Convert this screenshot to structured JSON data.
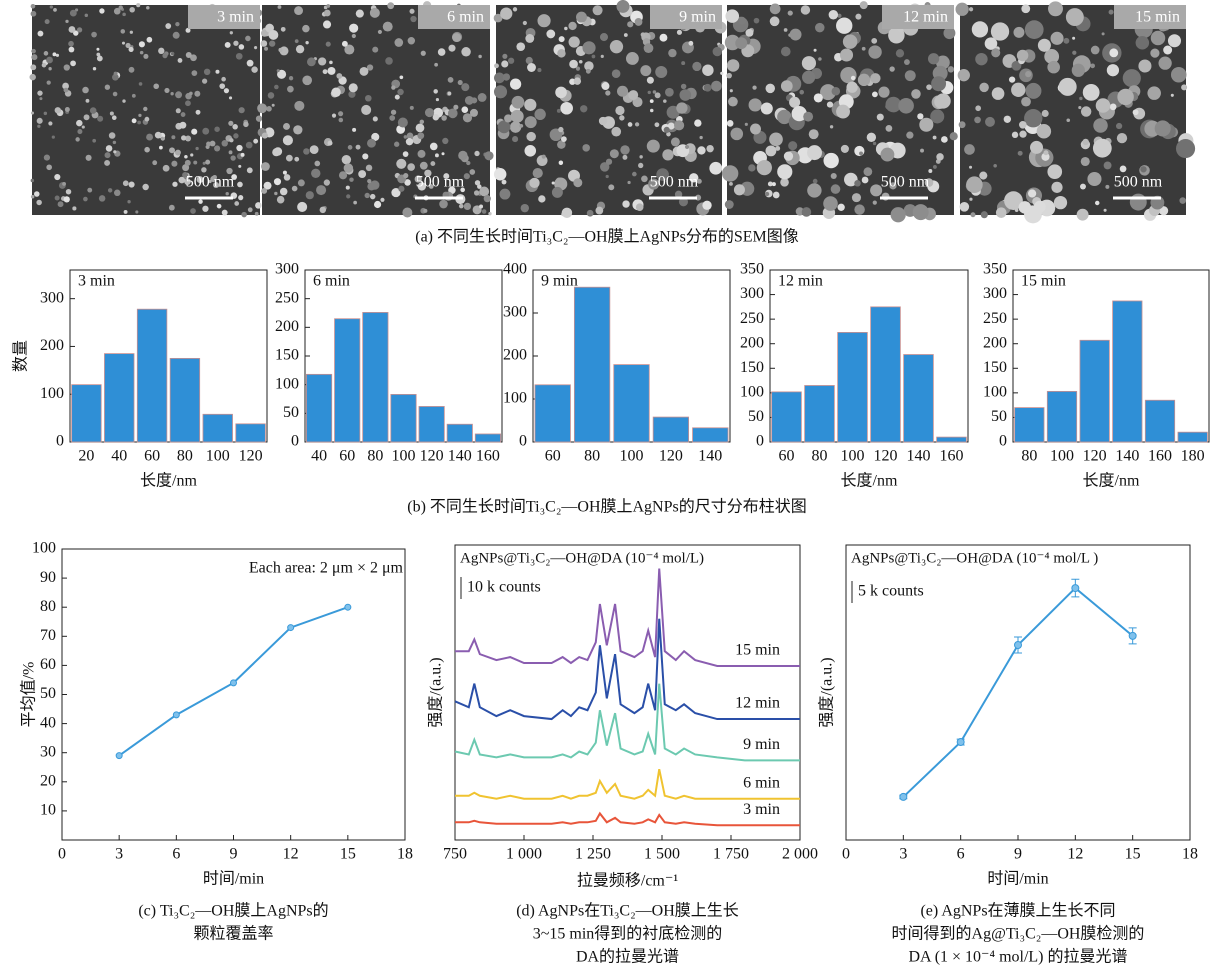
{
  "sem_panels": [
    {
      "time": "3 min",
      "scale": "500 nm"
    },
    {
      "time": "6 min",
      "scale": "500 nm"
    },
    {
      "time": "9 min",
      "scale": "500 nm"
    },
    {
      "time": "12 min",
      "scale": "500 nm"
    },
    {
      "time": "15 min",
      "scale": "500 nm"
    }
  ],
  "captions": {
    "a": "(a) 不同生长时间Ti₃C₂—OH膜上AgNPs分布的SEM图像",
    "b": "(b) 不同生长时间Ti₃C₂—OH膜上AgNPs的尺寸分布柱状图"
  },
  "chart_data": [
    {
      "type": "bar",
      "label": "3 min",
      "y_label": "数量",
      "x_label": "长度/nm",
      "color": "#2f8fd6",
      "x": [
        20,
        40,
        60,
        80,
        100,
        120
      ],
      "values": [
        120,
        185,
        278,
        175,
        58,
        38
      ],
      "xlim": [
        10,
        130
      ],
      "xticks": [
        20,
        40,
        60,
        80,
        100,
        120
      ],
      "ylim": [
        0,
        360
      ],
      "yticks": [
        0,
        100,
        200,
        300
      ]
    },
    {
      "type": "bar",
      "label": "6 min",
      "color": "#2f8fd6",
      "x": [
        40,
        60,
        80,
        100,
        120,
        140,
        160
      ],
      "values": [
        118,
        215,
        226,
        83,
        62,
        31,
        14
      ],
      "xlim": [
        30,
        170
      ],
      "xticks": [
        40,
        60,
        80,
        100,
        120,
        140,
        160
      ],
      "ylim": [
        0,
        300
      ],
      "yticks": [
        0,
        50,
        100,
        150,
        200,
        250,
        300
      ]
    },
    {
      "type": "bar",
      "label": "9 min",
      "color": "#2f8fd6",
      "x": [
        60,
        80,
        100,
        120,
        140
      ],
      "values": [
        133,
        360,
        180,
        58,
        33
      ],
      "xlim": [
        50,
        150
      ],
      "xticks": [
        60,
        80,
        100,
        120,
        140
      ],
      "ylim": [
        0,
        400
      ],
      "yticks": [
        0,
        100,
        200,
        300,
        400
      ]
    },
    {
      "type": "bar",
      "label": "12 min",
      "x_label": "长度/nm",
      "color": "#2f8fd6",
      "x": [
        60,
        80,
        100,
        120,
        140,
        160
      ],
      "values": [
        102,
        115,
        223,
        275,
        178,
        10
      ],
      "xlim": [
        50,
        170
      ],
      "xticks": [
        60,
        80,
        100,
        120,
        140,
        160
      ],
      "ylim": [
        0,
        350
      ],
      "yticks": [
        0,
        50,
        100,
        150,
        200,
        250,
        300,
        350
      ]
    },
    {
      "type": "bar",
      "label": "15 min",
      "x_label": "长度/nm",
      "color": "#2f8fd6",
      "x": [
        80,
        100,
        120,
        140,
        160,
        180
      ],
      "values": [
        70,
        103,
        207,
        287,
        85,
        20
      ],
      "xlim": [
        70,
        190
      ],
      "xticks": [
        80,
        100,
        120,
        140,
        160,
        180
      ],
      "ylim": [
        0,
        350
      ],
      "yticks": [
        0,
        50,
        100,
        150,
        200,
        250,
        300,
        350
      ]
    },
    {
      "type": "line",
      "x_label": "时间/min",
      "y_label": "平均值/%",
      "annotation": "Each area: 2 μm × 2 μm",
      "color": "#3a9ad9",
      "x": [
        3,
        6,
        9,
        12,
        15
      ],
      "values": [
        29,
        43,
        54,
        73,
        80
      ],
      "xlim": [
        0,
        18
      ],
      "xticks": [
        0,
        3,
        6,
        9,
        12,
        15,
        18
      ],
      "ylim": [
        0,
        100
      ],
      "yticks": [
        10,
        20,
        30,
        40,
        50,
        60,
        70,
        80,
        90,
        100
      ],
      "caption": [
        "(c) Ti₃C₂—OH膜上AgNPs的",
        "颗粒覆盖率"
      ]
    },
    {
      "type": "spectra",
      "x_label": "拉曼频移/cm⁻¹",
      "y_label": "强度/(a.u.)",
      "annotation": "AgNPs@Ti₃C₂—OH@DA (10⁻⁴ mol/L)",
      "scale_label": "10 k counts",
      "x": [
        750,
        800,
        820,
        840,
        900,
        950,
        1000,
        1100,
        1140,
        1170,
        1200,
        1230,
        1260,
        1275,
        1300,
        1330,
        1350,
        1400,
        1430,
        1450,
        1475,
        1490,
        1510,
        1550,
        1580,
        1620,
        1700,
        1800,
        1900,
        2000
      ],
      "xlim": [
        750,
        2000
      ],
      "xticks": [
        750,
        {
          "value": 1000,
          "label": "1 000"
        },
        {
          "value": 1250,
          "label": "1 250"
        },
        {
          "value": 1500,
          "label": "1 500"
        },
        {
          "value": 1750,
          "label": "1 750"
        },
        {
          "value": 2000,
          "label": "2 000"
        }
      ],
      "ylim": [
        0,
        100
      ],
      "series": [
        {
          "name": "3 min",
          "color": "#e8553a",
          "values": [
            6,
            6,
            6.5,
            6,
            5.5,
            5.5,
            5.5,
            5.5,
            6,
            5.5,
            6,
            6,
            6.5,
            9,
            6,
            7.5,
            6,
            5.5,
            6,
            7,
            6,
            8.5,
            6,
            5.5,
            6,
            5.5,
            5,
            5,
            5,
            5
          ]
        },
        {
          "name": "6 min",
          "color": "#f0c330",
          "values": [
            15,
            15,
            16,
            15,
            14,
            15,
            14,
            14,
            15,
            14,
            15,
            15,
            16,
            20,
            16,
            19,
            15,
            14,
            15,
            17,
            15,
            24,
            15,
            14,
            15,
            14,
            14,
            14,
            14,
            14
          ]
        },
        {
          "name": "9 min",
          "color": "#6cc9b0",
          "values": [
            30,
            29,
            34,
            29,
            28,
            29,
            28,
            28,
            29,
            28,
            30,
            29,
            33,
            44,
            32,
            43,
            31,
            29,
            30,
            36,
            29,
            53,
            31,
            29,
            31,
            29,
            28,
            27,
            27,
            27
          ]
        },
        {
          "name": "12 min",
          "color": "#2a4fa8",
          "values": [
            47,
            45,
            53,
            45,
            42,
            44,
            42,
            41,
            44,
            42,
            45,
            44,
            50,
            66,
            48,
            63,
            46,
            43,
            45,
            53,
            44,
            75,
            46,
            44,
            46,
            43,
            41,
            41,
            41,
            41
          ]
        },
        {
          "name": "15 min",
          "color": "#8a5db0",
          "values": [
            64,
            64,
            68,
            63,
            61,
            62,
            60,
            60,
            62,
            60,
            62,
            61,
            67,
            80,
            66,
            80,
            64,
            62,
            64,
            71,
            62,
            92,
            64,
            61,
            64,
            61,
            59,
            59,
            59,
            59
          ]
        }
      ],
      "caption": [
        "(d) AgNPs在Ti₃C₂—OH膜上生长",
        "3~15 min得到的衬底检测的",
        "DA的拉曼光谱"
      ]
    },
    {
      "type": "errorline",
      "x_label": "时间/min",
      "y_label": "强度/(a.u.)",
      "annotation": "AgNPs@Ti₃C₂—OH@DA (10⁻⁴ mol/L )",
      "scale_label": "5 k counts",
      "color": "#3a9ad9",
      "x": [
        3,
        6,
        9,
        12,
        15
      ],
      "values": [
        14.6,
        33.2,
        66.1,
        85.4,
        69.2
      ],
      "errors": [
        0.6,
        1,
        2.7,
        3,
        2.7
      ],
      "xlim": [
        0,
        18
      ],
      "xticks": [
        0,
        3,
        6,
        9,
        12,
        15,
        18
      ],
      "ylim": [
        0,
        100
      ],
      "caption": [
        "(e) AgNPs在薄膜上生长不同",
        "时间得到的Ag@Ti₃C₂—OH膜检测的",
        "DA (1 × 10⁻⁴ mol/L) 的拉曼光谱"
      ]
    }
  ]
}
